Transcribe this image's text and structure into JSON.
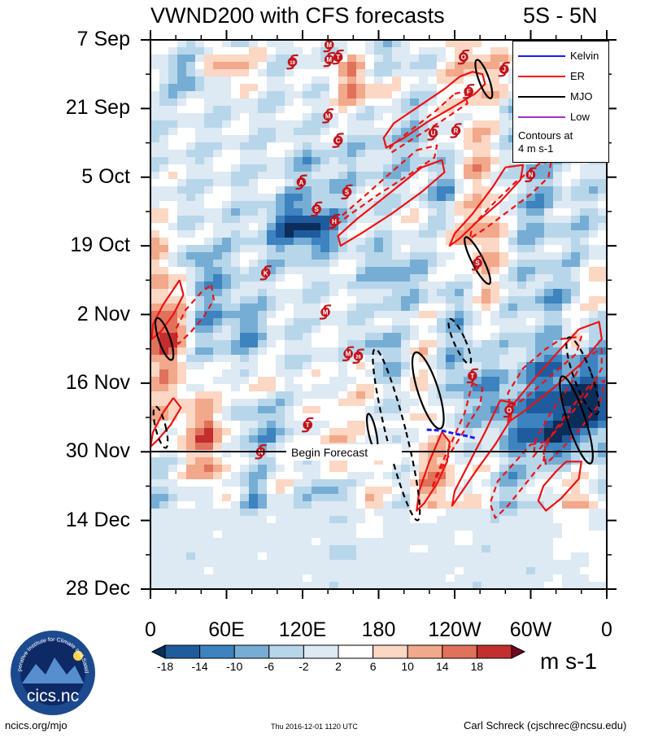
{
  "chart_data": {
    "type": "heatmap",
    "title": "VWND200 with CFS forecasts",
    "region": "5S - 5N",
    "units": "m s-1",
    "x_tick_labels": [
      "0",
      "60E",
      "120E",
      "180",
      "120W",
      "60W",
      "0"
    ],
    "x_range_deg_east": [
      0,
      360
    ],
    "y_tick_labels": [
      "7 Sep",
      "21 Sep",
      "5 Oct",
      "19 Oct",
      "2 Nov",
      "16 Nov",
      "30 Nov",
      "14 Dec",
      "28 Dec"
    ],
    "y_range_days": [
      0,
      112
    ],
    "forecast_start_label": "Begin Forecast",
    "forecast_start_day": 84,
    "colorbar": {
      "levels": [
        "-18",
        "-14",
        "-10",
        "-6",
        "-2",
        "2",
        "6",
        "10",
        "14",
        "18"
      ],
      "colors": [
        "#0b2d5a",
        "#1f5c9e",
        "#3c83bf",
        "#76add4",
        "#b8d6ea",
        "#dde9f3",
        "#ffffff",
        "#fbd7c4",
        "#f2a88a",
        "#e0715a",
        "#c32e2e",
        "#6e0a1e"
      ]
    },
    "legend": [
      {
        "name": "Kelvin",
        "color": "#1a1aff"
      },
      {
        "name": "ER",
        "color": "#ee1111"
      },
      {
        "name": "MJO",
        "color": "#000000"
      },
      {
        "name": "Low",
        "color": "#9933cc"
      }
    ],
    "contour_note": [
      "Contours at",
      "4 m s-1"
    ],
    "storms": [
      {
        "label": "M",
        "lon": 141,
        "day": 1
      },
      {
        "label": "19",
        "lon": 112,
        "day": 4.5
      },
      {
        "label": "M",
        "lon": 141,
        "day": 4
      },
      {
        "label": "T",
        "lon": 148,
        "day": 3.5
      },
      {
        "label": "O",
        "lon": 247,
        "day": 3.5
      },
      {
        "label": "J",
        "lon": 279,
        "day": 6
      },
      {
        "label": "F",
        "lon": 251,
        "day": 10.5
      },
      {
        "label": "M",
        "lon": 140,
        "day": 15.5
      },
      {
        "label": "U",
        "lon": 223,
        "day": 19
      },
      {
        "label": "R",
        "lon": 241,
        "day": 18.5
      },
      {
        "label": "C",
        "lon": 148,
        "day": 20.5
      },
      {
        "label": "N",
        "lon": 300,
        "day": 27.5
      },
      {
        "label": "A",
        "lon": 119,
        "day": 29
      },
      {
        "label": "S",
        "lon": 155,
        "day": 31
      },
      {
        "label": "S",
        "lon": 131,
        "day": 34.5
      },
      {
        "label": "H",
        "lon": 145,
        "day": 37
      },
      {
        "label": "S",
        "lon": 258,
        "day": 45.5
      },
      {
        "label": "K",
        "lon": 91,
        "day": 47.5
      },
      {
        "label": "M",
        "lon": 138,
        "day": 55.5
      },
      {
        "label": "M",
        "lon": 156,
        "day": 64
      },
      {
        "label": "26",
        "lon": 164,
        "day": 64.5
      },
      {
        "label": "T",
        "lon": 254,
        "day": 68.5
      },
      {
        "label": "O",
        "lon": 283,
        "day": 75.5
      },
      {
        "label": "T",
        "lon": 124,
        "day": 78.5
      },
      {
        "label": "N",
        "lon": 87,
        "day": 84
      }
    ],
    "kelvin_contours": [
      {
        "lon": [
          218,
          226,
          232,
          238,
          240,
          246,
          250,
          256
        ],
        "day": [
          79.5,
          79.6,
          79.8,
          80.2,
          80.3,
          80.6,
          80.8,
          81.2
        ],
        "dashed": true
      }
    ],
    "er_contours": [
      {
        "lon": [
          244,
          254,
          262,
          264,
          256,
          240,
          220,
          200,
          186,
          184,
          192,
          212,
          232,
          244
        ],
        "day": [
          7.5,
          6.5,
          7,
          9,
          11,
          13.5,
          16.5,
          20,
          22,
          20,
          17,
          13.5,
          10,
          7.5
        ],
        "dashed": false
      },
      {
        "lon": [
          240,
          248,
          250,
          230,
          205,
          190,
          189,
          200,
          225,
          240
        ],
        "day": [
          11,
          10.5,
          13,
          16.5,
          20.5,
          23,
          22,
          19.5,
          14.5,
          11
        ],
        "dashed": true
      },
      {
        "lon": [
          214,
          230,
          232,
          214,
          190,
          166,
          150,
          148,
          163,
          190,
          214
        ],
        "day": [
          26,
          24.5,
          27,
          31,
          35.5,
          39.5,
          42,
          40,
          36.5,
          31,
          26
        ],
        "dashed": false
      },
      {
        "lon": [
          210,
          226,
          224,
          204,
          180,
          158,
          143,
          146,
          166,
          190,
          210
        ],
        "day": [
          22.5,
          21.5,
          24,
          27.5,
          31.5,
          35.5,
          38.5,
          37,
          32.5,
          27,
          22.5
        ],
        "dashed": true
      },
      {
        "lon": [
          280,
          294,
          292,
          276,
          258,
          244,
          236,
          240,
          254,
          270,
          280
        ],
        "day": [
          26,
          25.5,
          28.5,
          33,
          37,
          40.5,
          42,
          39.5,
          35.5,
          30,
          26
        ],
        "dashed": false
      },
      {
        "lon": [
          308,
          316,
          314,
          300,
          282,
          264,
          252,
          254,
          268,
          288,
          308
        ],
        "day": [
          25,
          25,
          28,
          31.5,
          35,
          38.5,
          40.5,
          38,
          34,
          29,
          25
        ],
        "dashed": true
      },
      {
        "lon": [
          23,
          26,
          18,
          8,
          1,
          2,
          10,
          23
        ],
        "day": [
          49,
          52,
          56,
          59.5,
          61,
          58,
          54,
          49
        ],
        "dashed": false
      },
      {
        "lon": [
          48,
          50,
          42,
          32,
          22,
          20,
          28,
          40,
          48
        ],
        "day": [
          50,
          53,
          56.5,
          59.5,
          62,
          59,
          55,
          51.5,
          50
        ],
        "dashed": true
      },
      {
        "lon": [
          338,
          354,
          356,
          340,
          318,
          296,
          282,
          284,
          300,
          322,
          338
        ],
        "day": [
          59,
          57.5,
          61,
          66,
          71,
          75.5,
          78,
          75,
          70,
          63.5,
          59
        ],
        "dashed": false
      },
      {
        "lon": [
          324,
          340,
          336,
          316,
          296,
          284,
          282,
          294,
          312,
          324
        ],
        "day": [
          61,
          60.5,
          64,
          68.5,
          73,
          75,
          72,
          67,
          63,
          61
        ],
        "dashed": true
      },
      {
        "lon": [
          18,
          24,
          16,
          6,
          0,
          2,
          10,
          18
        ],
        "day": [
          73,
          75,
          78.5,
          81.5,
          83,
          80,
          76,
          73
        ],
        "dashed": false
      },
      {
        "lon": [
          276,
          286,
          284,
          272,
          258,
          246,
          238,
          240,
          250,
          264,
          276
        ],
        "day": [
          73.5,
          74,
          77.5,
          82.5,
          87.5,
          92,
          95,
          92,
          87,
          80,
          73.5
        ],
        "dashed": false
      },
      {
        "lon": [
          254,
          262,
          260,
          248,
          236,
          226,
          222,
          226,
          236,
          248,
          254
        ],
        "day": [
          70,
          71,
          74.5,
          79.5,
          84.5,
          89,
          91.5,
          88.5,
          83,
          76,
          70
        ],
        "dashed": true
      },
      {
        "lon": [
          230,
          236,
          234,
          226,
          216,
          210,
          212,
          220,
          230
        ],
        "day": [
          80,
          82,
          86,
          90.5,
          94.5,
          96,
          92,
          86,
          80
        ],
        "dashed": false
      },
      {
        "lon": [
          342,
          356,
          356,
          344,
          326,
          310,
          302,
          304,
          316,
          332,
          342
        ],
        "day": [
          65,
          63,
          67,
          72.5,
          78,
          82.5,
          85,
          81.5,
          76,
          70,
          65
        ],
        "dashed": true
      },
      {
        "lon": [
          348,
          358,
          355,
          340,
          324,
          312,
          310,
          318,
          332,
          348
        ],
        "day": [
          70,
          69.5,
          74,
          79,
          83.5,
          86.5,
          84,
          80,
          75,
          70
        ],
        "dashed": true
      },
      {
        "lon": [
          300,
          312,
          310,
          296,
          282,
          272,
          268,
          274,
          288,
          300
        ],
        "day": [
          82.5,
          82,
          86,
          90.5,
          95,
          97.5,
          94.5,
          90,
          86,
          82.5
        ],
        "dashed": true
      },
      {
        "lon": [
          328,
          340,
          338,
          324,
          312,
          306,
          310,
          320,
          328
        ],
        "day": [
          86,
          86,
          89.5,
          93.5,
          96,
          94,
          91,
          88,
          86
        ],
        "dashed": false
      }
    ],
    "mjo_contours": [
      {
        "center_lon": 263,
        "center_day": 8,
        "rx": 4,
        "ry": 25,
        "angle": -20,
        "dashed": false
      },
      {
        "center_lon": 258,
        "center_day": 45,
        "rx": 4.5,
        "ry": 32,
        "angle": -27,
        "dashed": false
      },
      {
        "center_lon": 244,
        "center_day": 61.5,
        "rx": 4.5,
        "ry": 30,
        "angle": -24,
        "dashed": true
      },
      {
        "center_lon": 11,
        "center_day": 61,
        "rx": 4.5,
        "ry": 27,
        "angle": -19,
        "dashed": false
      },
      {
        "center_lon": 8,
        "center_day": 79,
        "rx": 4,
        "ry": 26,
        "angle": -14,
        "dashed": true
      },
      {
        "center_lon": 219,
        "center_day": 71.5,
        "rx": 8,
        "ry": 49,
        "angle": -18,
        "dashed": false
      },
      {
        "center_lon": 194,
        "center_day": 80.5,
        "rx": 8,
        "ry": 108,
        "angle": -14,
        "dashed": true
      },
      {
        "center_lon": 175,
        "center_day": 80,
        "rx": 3,
        "ry": 23,
        "angle": -12,
        "dashed": false
      },
      {
        "center_lon": 341,
        "center_day": 68.5,
        "rx": 7,
        "ry": 50,
        "angle": -20,
        "dashed": true
      },
      {
        "center_lon": 336,
        "center_day": 77.5,
        "rx": 7,
        "ry": 56,
        "angle": -18,
        "dashed": false
      }
    ]
  },
  "logo": {
    "name": "cics.nc",
    "ring_text": "Cooperative Institute for Climate and Satellites"
  },
  "footer": {
    "left": "ncics.org/mjo",
    "center": "Thu 2016-12-01 1120 UTC",
    "right": "Carl Schreck (cjschrec@ncsu.edu)"
  }
}
